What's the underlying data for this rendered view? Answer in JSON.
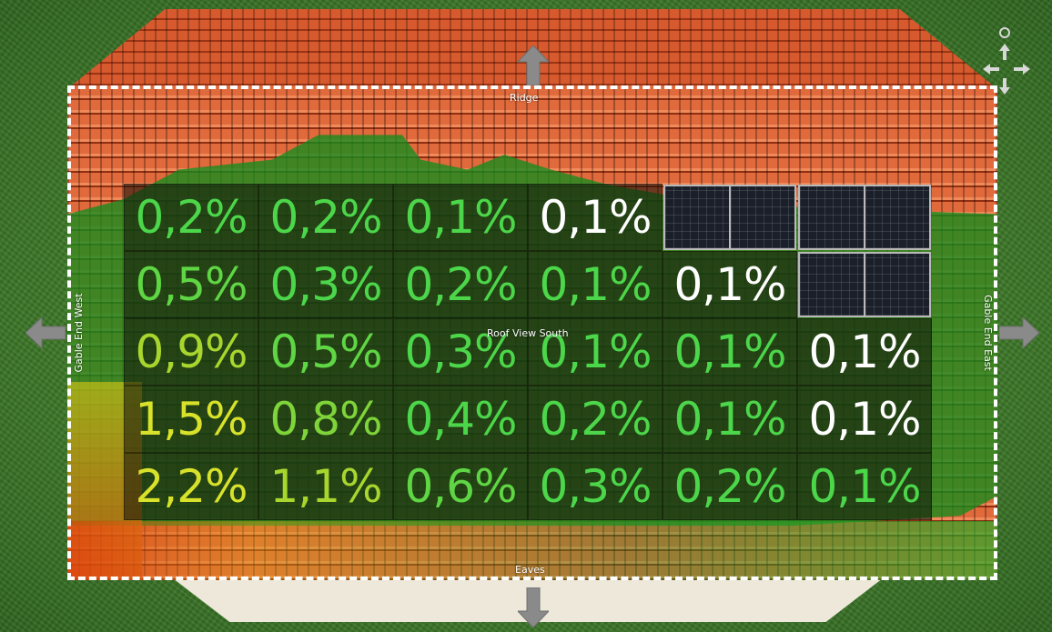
{
  "labels": {
    "ridge": "Ridge",
    "eaves": "Eaves",
    "center": "Roof View South",
    "west": "Gable End West",
    "east": "Gable End East"
  },
  "colors": {
    "white": "#ffffff",
    "green": "#4cd64a",
    "light_green": "#7fd43a",
    "yellow_green": "#a8d62e",
    "yellow": "#d8e22a"
  },
  "grid": [
    [
      {
        "value": "0,2%",
        "color": "#4cd64a"
      },
      {
        "value": "0,2%",
        "color": "#4cd64a"
      },
      {
        "value": "0,1%",
        "color": "#4cd64a"
      },
      {
        "value": "0,1%",
        "color": "#ffffff"
      },
      {
        "panel": true
      },
      {
        "panel": true
      }
    ],
    [
      {
        "value": "0,5%",
        "color": "#5fd644"
      },
      {
        "value": "0,3%",
        "color": "#4cd64a"
      },
      {
        "value": "0,2%",
        "color": "#4cd64a"
      },
      {
        "value": "0,1%",
        "color": "#4cd64a"
      },
      {
        "value": "0,1%",
        "color": "#ffffff"
      },
      {
        "panel": true
      }
    ],
    [
      {
        "value": "0,9%",
        "color": "#a8d62e"
      },
      {
        "value": "0,5%",
        "color": "#5fd644"
      },
      {
        "value": "0,3%",
        "color": "#4cd64a"
      },
      {
        "value": "0,1%",
        "color": "#4cd64a"
      },
      {
        "value": "0,1%",
        "color": "#4cd64a"
      },
      {
        "value": "0,1%",
        "color": "#ffffff"
      }
    ],
    [
      {
        "value": "1,5%",
        "color": "#d8e22a"
      },
      {
        "value": "0,8%",
        "color": "#7fd43a"
      },
      {
        "value": "0,4%",
        "color": "#4cd64a"
      },
      {
        "value": "0,2%",
        "color": "#4cd64a"
      },
      {
        "value": "0,1%",
        "color": "#4cd64a"
      },
      {
        "value": "0,1%",
        "color": "#ffffff"
      }
    ],
    [
      {
        "value": "2,2%",
        "color": "#d8e22a"
      },
      {
        "value": "1,1%",
        "color": "#a8d62e"
      },
      {
        "value": "0,6%",
        "color": "#5fd644"
      },
      {
        "value": "0,3%",
        "color": "#4cd64a"
      },
      {
        "value": "0,2%",
        "color": "#4cd64a"
      },
      {
        "value": "0,1%",
        "color": "#4cd64a"
      }
    ]
  ],
  "icons": {
    "up": "arrow-up-icon",
    "down": "arrow-down-icon",
    "left": "arrow-left-icon",
    "right": "arrow-right-icon",
    "nav": "navigation-cross-icon"
  }
}
